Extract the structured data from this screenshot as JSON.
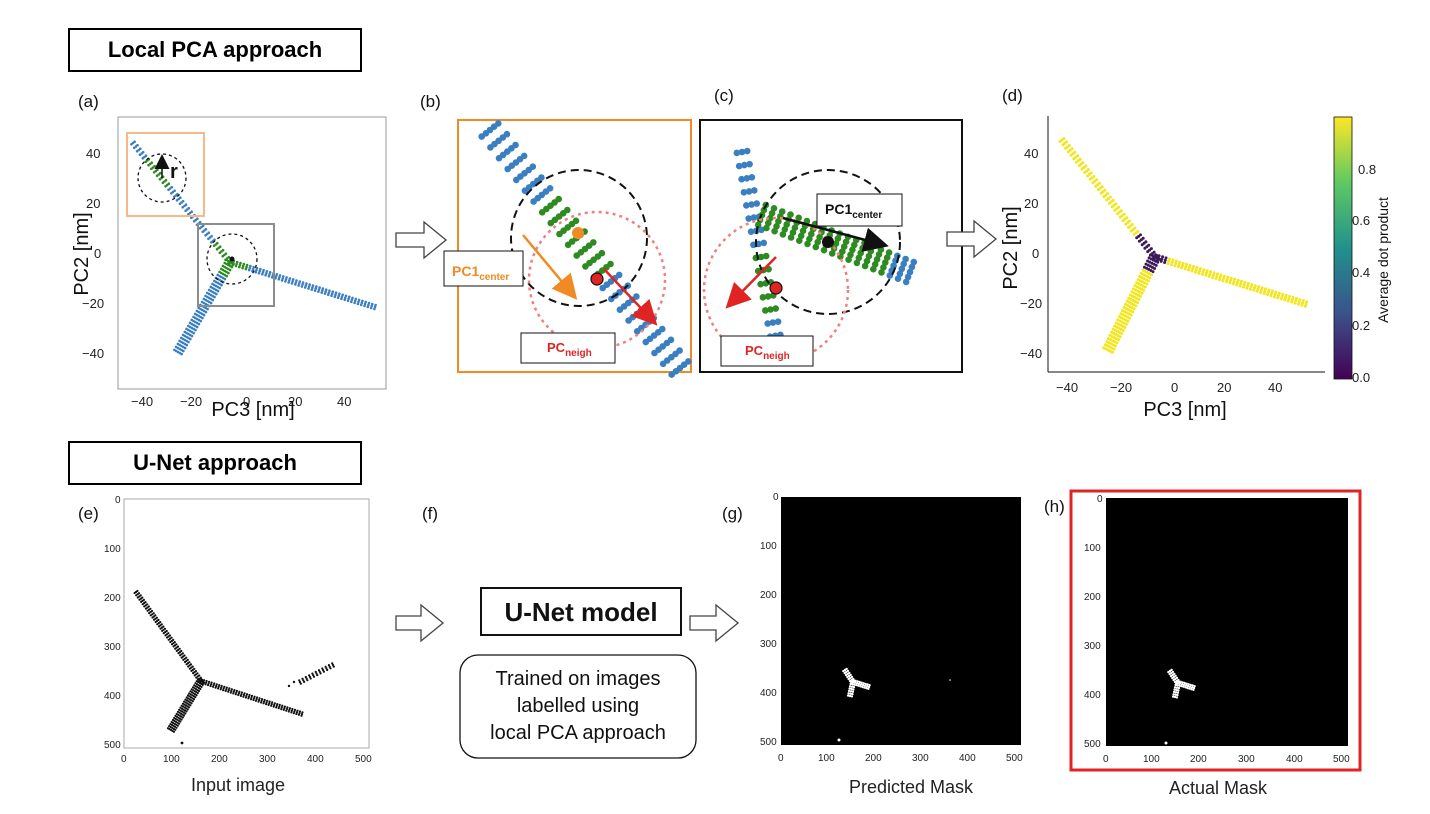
{
  "sections": {
    "pca_title": "Local PCA approach",
    "unet_title": "U-Net approach"
  },
  "panels": {
    "a": {
      "label": "(a)",
      "radius_label": "r",
      "xlabel": "PC3 [nm]",
      "ylabel": "PC2 [nm]",
      "xticks": [
        "−40",
        "−20",
        "0",
        "20",
        "40"
      ],
      "yticks": [
        "40",
        "20",
        "0",
        "−20",
        "−40"
      ]
    },
    "b": {
      "label": "(b)",
      "pc1_main": "PC1",
      "pc1_sub": "center",
      "pcn_main": "PC",
      "pcn_sub": "neigh"
    },
    "c": {
      "label": "(c)",
      "pc1_main": "PC1",
      "pc1_sub": "center",
      "pcn_main": "PC",
      "pcn_sub": "neigh"
    },
    "d": {
      "label": "(d)",
      "xlabel": "PC3 [nm]",
      "ylabel": "PC2 [nm]",
      "xticks": [
        "−40",
        "−20",
        "0",
        "20",
        "40"
      ],
      "yticks": [
        "40",
        "20",
        "0",
        "−20",
        "−40"
      ],
      "colorbar_label": "Average dot product",
      "colorbar_ticks": [
        "0.8",
        "0.6",
        "0.4",
        "0.2",
        "0.0"
      ]
    },
    "e": {
      "label": "(e)",
      "caption": "Input image",
      "xticks": [
        "0",
        "100",
        "200",
        "300",
        "400",
        "500"
      ],
      "yticks": [
        "0",
        "100",
        "200",
        "300",
        "400",
        "500"
      ]
    },
    "f": {
      "label": "(f)",
      "model_title": "U-Net model",
      "desc_line1": "Trained on images",
      "desc_line2": "labelled using",
      "desc_line3": "local PCA approach"
    },
    "g": {
      "label": "(g)",
      "caption": "Predicted Mask",
      "xticks": [
        "0",
        "100",
        "200",
        "300",
        "400",
        "500"
      ],
      "yticks": [
        "0",
        "100",
        "200",
        "300",
        "400",
        "500"
      ]
    },
    "h": {
      "label": "(h)",
      "caption": "Actual Mask",
      "xticks": [
        "0",
        "100",
        "200",
        "300",
        "400",
        "500"
      ],
      "yticks": [
        "0",
        "100",
        "200",
        "300",
        "400",
        "500"
      ]
    }
  },
  "colors": {
    "blue": "#3a7fc1",
    "green": "#2e8b22",
    "orange": "#f08a24",
    "red": "#e02424",
    "yellow": "#f2e61e",
    "purple": "#3b1a5a",
    "pink": "#f08080",
    "gray": "#8c8c8c"
  }
}
